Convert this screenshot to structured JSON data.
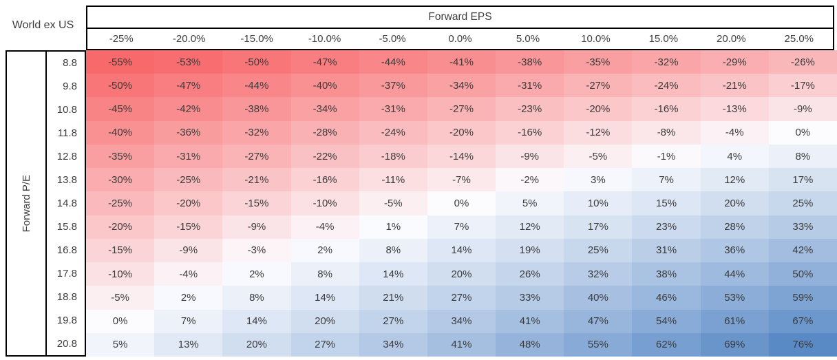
{
  "title": "World ex US",
  "col_group_title": "Forward EPS",
  "row_group_title": "Forward P/E",
  "chart_data": {
    "type": "heatmap",
    "title": "World ex US",
    "xlabel": "Forward EPS",
    "ylabel": "Forward P/E",
    "columns": [
      "-25%",
      "-20.0%",
      "-15.0%",
      "-10.0%",
      "-5.0%",
      "0.0%",
      "5.0%",
      "10.0%",
      "15.0%",
      "20.0%",
      "25.0%"
    ],
    "rows": [
      "8.8",
      "9.8",
      "10.8",
      "11.8",
      "12.8",
      "13.8",
      "14.8",
      "15.8",
      "16.8",
      "17.8",
      "18.8",
      "19.8",
      "20.8"
    ],
    "value_suffix": "%",
    "values": [
      [
        -55,
        -53,
        -50,
        -47,
        -44,
        -41,
        -38,
        -35,
        -32,
        -29,
        -26
      ],
      [
        -50,
        -47,
        -44,
        -40,
        -37,
        -34,
        -31,
        -27,
        -24,
        -21,
        -17
      ],
      [
        -45,
        -42,
        -38,
        -34,
        -31,
        -27,
        -23,
        -20,
        -16,
        -13,
        -9
      ],
      [
        -40,
        -36,
        -32,
        -28,
        -24,
        -20,
        -16,
        -12,
        -8,
        -4,
        0
      ],
      [
        -35,
        -31,
        -27,
        -22,
        -18,
        -14,
        -9,
        -5,
        -1,
        4,
        8
      ],
      [
        -30,
        -25,
        -21,
        -16,
        -11,
        -7,
        -2,
        3,
        7,
        12,
        17
      ],
      [
        -25,
        -20,
        -15,
        -10,
        -5,
        0,
        5,
        10,
        15,
        20,
        25
      ],
      [
        -20,
        -15,
        -9,
        -4,
        1,
        7,
        12,
        17,
        23,
        28,
        33
      ],
      [
        -15,
        -9,
        -3,
        2,
        8,
        14,
        19,
        25,
        31,
        36,
        42
      ],
      [
        -10,
        -4,
        2,
        8,
        14,
        20,
        26,
        32,
        38,
        44,
        50
      ],
      [
        -5,
        2,
        8,
        14,
        21,
        27,
        33,
        40,
        46,
        53,
        59
      ],
      [
        0,
        7,
        14,
        20,
        27,
        34,
        41,
        47,
        54,
        61,
        67
      ],
      [
        5,
        13,
        20,
        27,
        34,
        41,
        48,
        55,
        62,
        69,
        76
      ]
    ],
    "colors": {
      "negative": "#F8696B",
      "mid": "#FCFCFF",
      "positive": "#5A8AC6"
    },
    "color_domain": [
      -55,
      0,
      76
    ],
    "legend_position": "none",
    "grid": false
  }
}
